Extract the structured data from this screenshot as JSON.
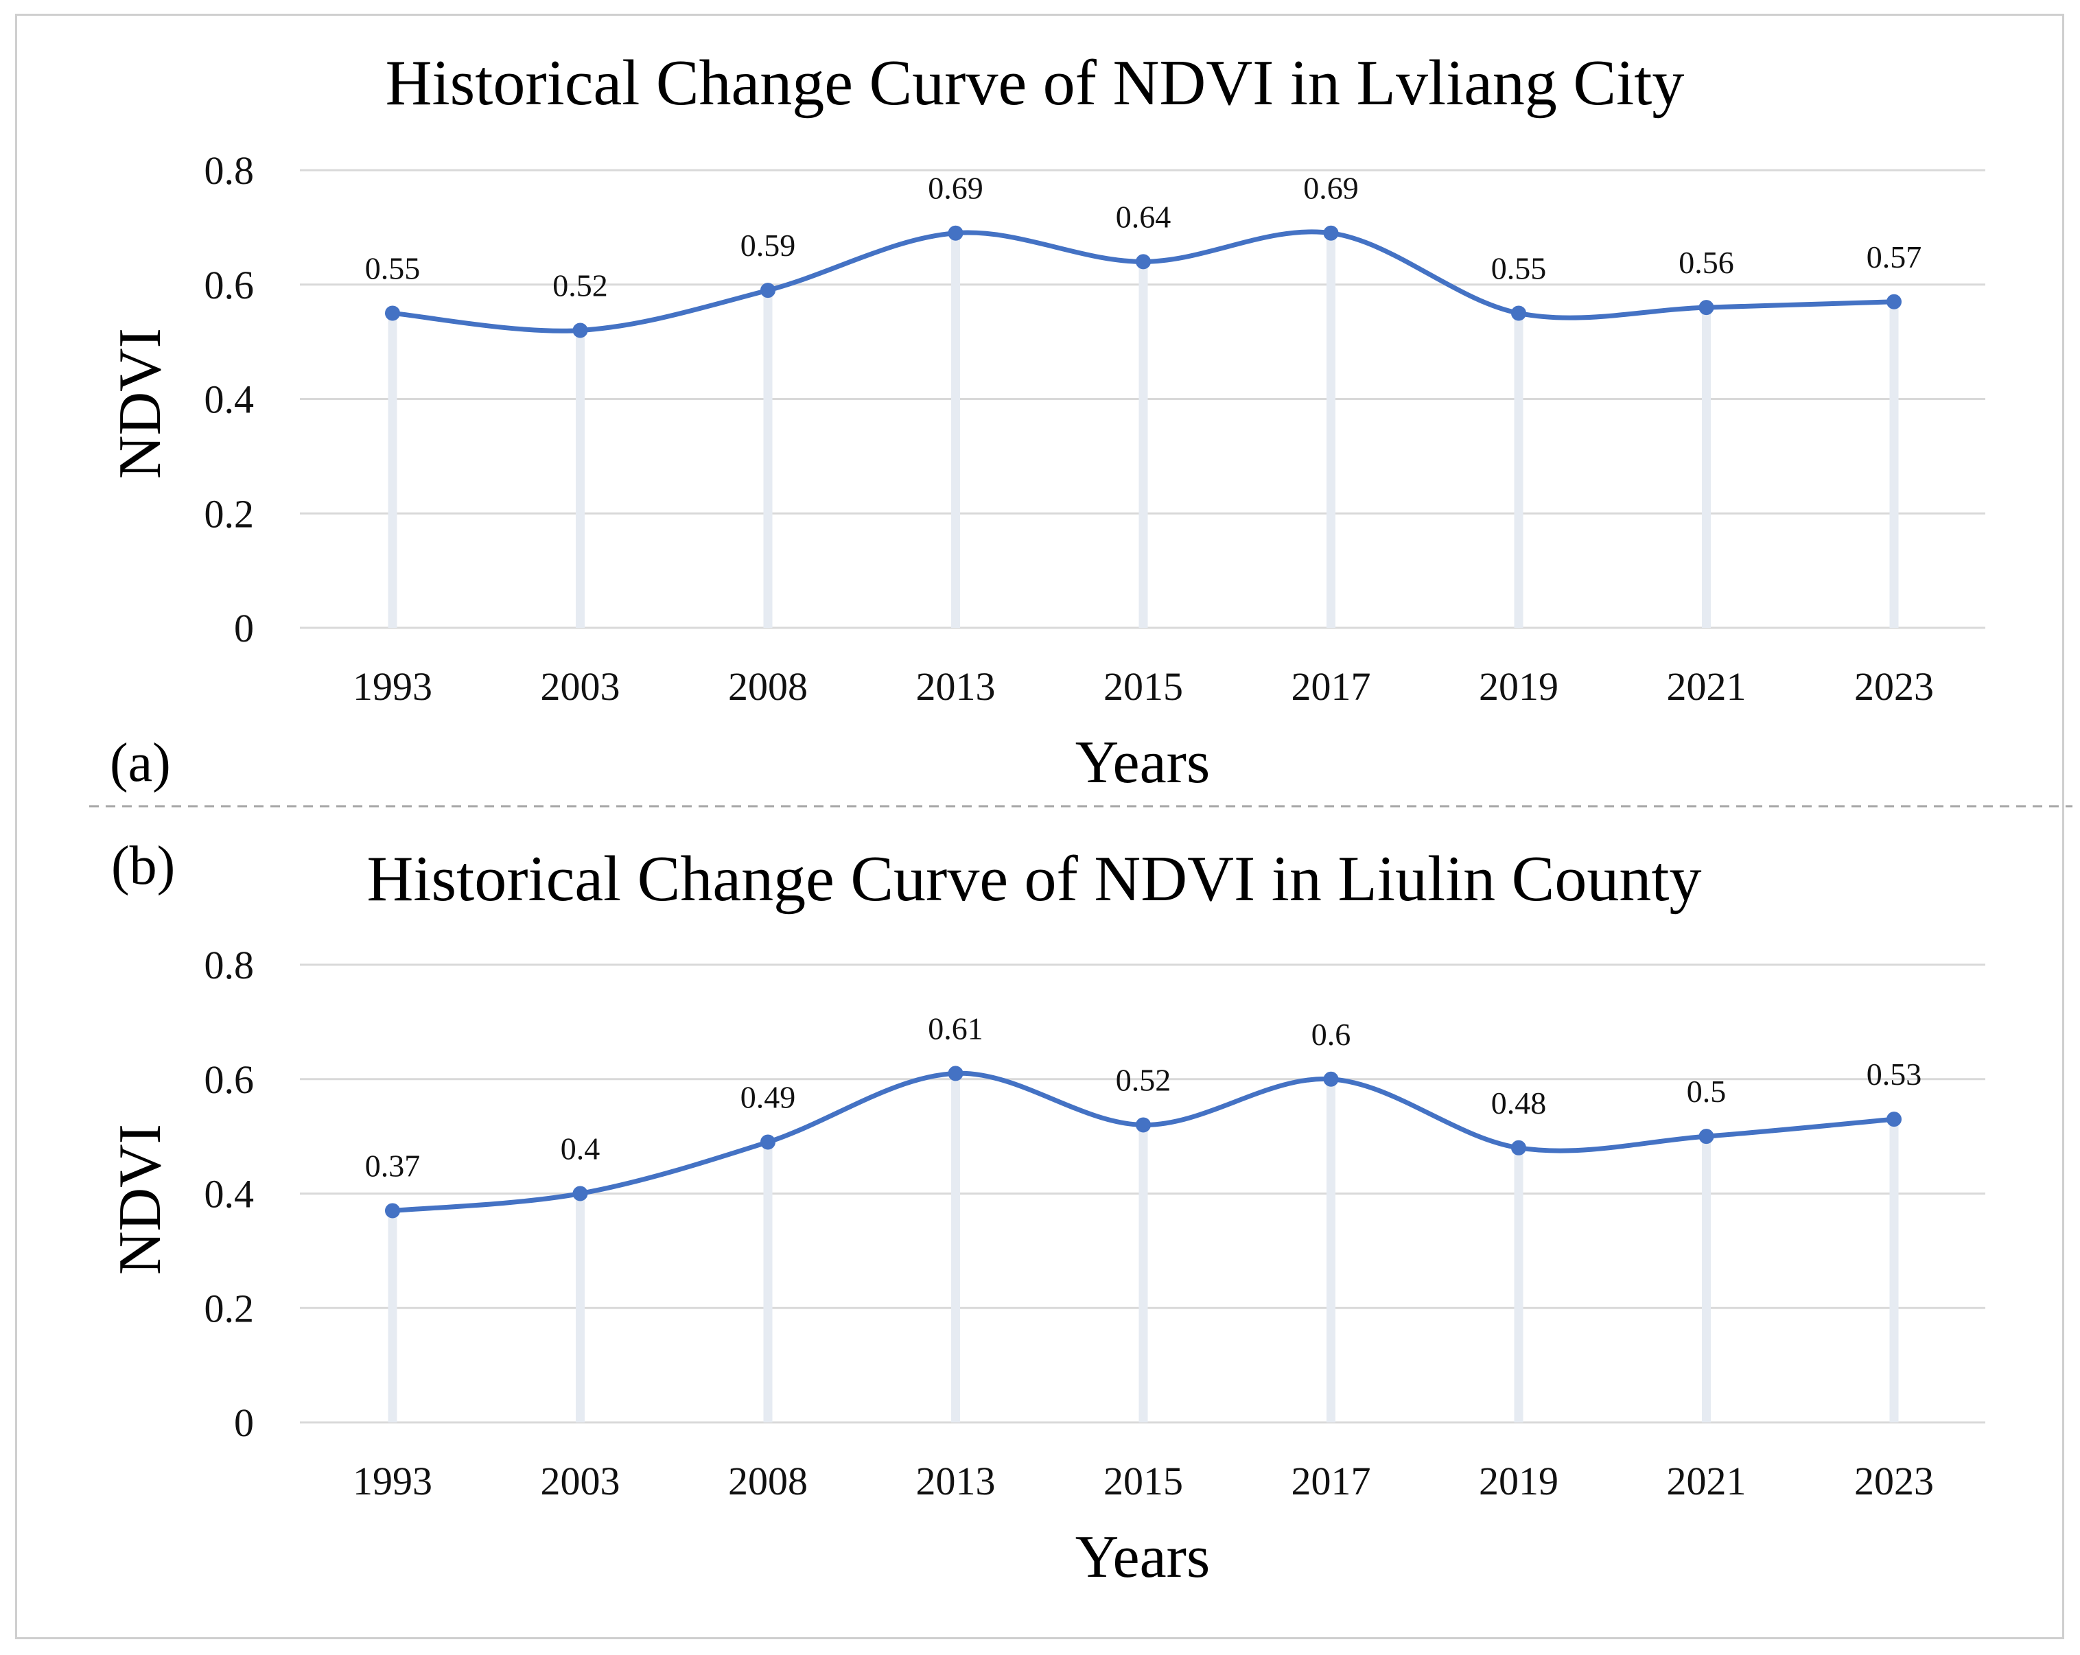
{
  "chart_data": [
    {
      "type": "line",
      "panel_label": "(a)",
      "title": "Historical Change Curve of NDVI in Lvliang City",
      "xlabel": "Years",
      "ylabel": "NDVI",
      "categories": [
        "1993",
        "2003",
        "2008",
        "2013",
        "2015",
        "2017",
        "2019",
        "2021",
        "2023"
      ],
      "series": [
        {
          "name": "NDVI",
          "values": [
            0.55,
            0.52,
            0.59,
            0.69,
            0.64,
            0.69,
            0.55,
            0.56,
            0.57
          ]
        }
      ],
      "ylim": [
        0,
        0.8
      ],
      "yticks": [
        "0",
        "0.2",
        "0.4",
        "0.6",
        "0.8"
      ],
      "grid": true,
      "smooth": true,
      "data_labels": true,
      "color": "#4472c4"
    },
    {
      "type": "line",
      "panel_label": "(b)",
      "title": "Historical Change Curve of NDVI in Liulin County",
      "xlabel": "Years",
      "ylabel": "NDVI",
      "categories": [
        "1993",
        "2003",
        "2008",
        "2013",
        "2015",
        "2017",
        "2019",
        "2021",
        "2023"
      ],
      "series": [
        {
          "name": "NDVI",
          "values": [
            0.37,
            0.4,
            0.49,
            0.61,
            0.52,
            0.6,
            0.48,
            0.5,
            0.53
          ]
        }
      ],
      "ylim": [
        0,
        0.8
      ],
      "yticks": [
        "0",
        "0.2",
        "0.4",
        "0.6",
        "0.8"
      ],
      "grid": true,
      "smooth": true,
      "data_labels": true,
      "color": "#4472c4"
    }
  ]
}
